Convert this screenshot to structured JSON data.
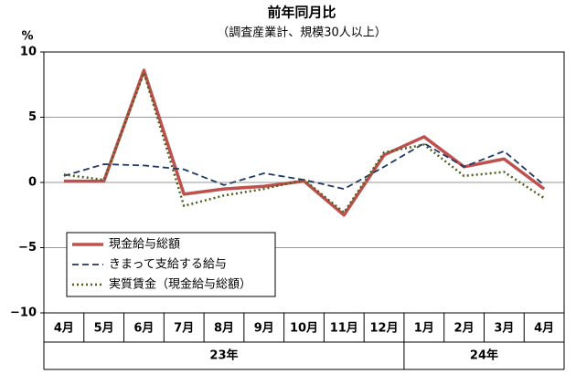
{
  "chart_data": {
    "type": "line",
    "title": "前年同月比",
    "subtitle": "（調査産業計、規模30人以上）",
    "y_label": "%",
    "category_groups": [
      {
        "label": "23年",
        "categories": [
          "4月",
          "5月",
          "6月",
          "7月",
          "8月",
          "9月",
          "10月",
          "11月",
          "12月"
        ]
      },
      {
        "label": "24年",
        "categories": [
          "1月",
          "2月",
          "3月",
          "4月"
        ]
      }
    ],
    "series": [
      {
        "name": "現金給与総額",
        "color": "#c0504d",
        "style": "solid",
        "values": [
          0.1,
          0.1,
          8.6,
          -0.9,
          -0.5,
          -0.3,
          0.1,
          -2.5,
          2.1,
          3.5,
          1.2,
          1.8,
          -0.5
        ]
      },
      {
        "name": "きまって支給する給与",
        "color": "#1f3864",
        "style": "dashed",
        "values": [
          0.5,
          1.4,
          1.3,
          1.0,
          -0.2,
          0.7,
          0.2,
          -0.5,
          1.2,
          3.0,
          1.2,
          2.4,
          -0.2
        ]
      },
      {
        "name": "実質賃金（現金給与総額）",
        "color": "#4f5f1f",
        "style": "dotted",
        "values": [
          0.6,
          0.2,
          8.4,
          -1.8,
          -1.0,
          -0.5,
          0.2,
          -2.3,
          2.3,
          2.9,
          0.5,
          0.8,
          -1.2
        ]
      }
    ],
    "ylim": [
      -10,
      10
    ],
    "yticks": [
      {
        "value": -10,
        "label": "−10"
      },
      {
        "value": -5,
        "label": "−5"
      },
      0,
      5,
      10
    ],
    "grid": true
  }
}
